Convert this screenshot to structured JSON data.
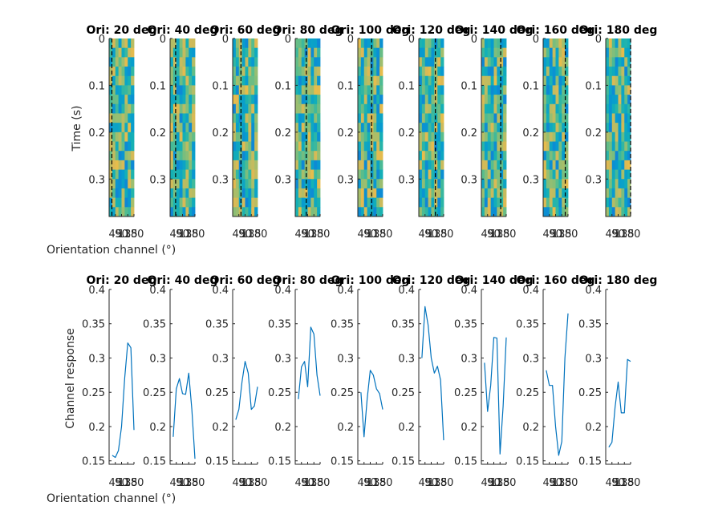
{
  "figure": {
    "top_xlabel": "Orientation channel (°)",
    "bottom_xlabel": "Orientation channel (°)",
    "top_ylabel": "Time (s)",
    "bottom_ylabel": "Channel response"
  },
  "chart_data": [
    {
      "type": "heatmap",
      "panels": [
        {
          "title": "Ori: 20 deg",
          "stimulus_deg": 20
        },
        {
          "title": "Ori: 40 deg",
          "stimulus_deg": 40
        },
        {
          "title": "Ori: 60 deg",
          "stimulus_deg": 60
        },
        {
          "title": "Ori: 80 deg",
          "stimulus_deg": 80
        },
        {
          "title": "Ori: 100 deg",
          "stimulus_deg": 100
        },
        {
          "title": "Ori: 120 deg",
          "stimulus_deg": 120
        },
        {
          "title": "Ori: 140 deg",
          "stimulus_deg": 140
        },
        {
          "title": "Ori: 160 deg",
          "stimulus_deg": 160
        },
        {
          "title": "Ori: 180 deg",
          "stimulus_deg": 180
        }
      ],
      "xlabel": "Orientation channel (°)",
      "ylabel": "Time (s)",
      "xlim": [
        0,
        180
      ],
      "ylim": [
        0,
        0.38
      ],
      "y_reversed": true,
      "x_ticks": [
        45,
        90,
        135,
        180
      ],
      "x_tick_labels": [
        "45",
        "90",
        "135",
        "180"
      ],
      "y_ticks": [
        0,
        0.1,
        0.2,
        0.3
      ],
      "y_tick_labels": [
        "0",
        "0.1",
        "0.2",
        "0.3"
      ],
      "channels": 8,
      "time_bins": 19,
      "colormap": "parula",
      "marker_line": "dashed black vertical line at stimulus orientation"
    },
    {
      "type": "line",
      "xlabel": "Orientation channel (°)",
      "ylabel": "Channel response",
      "xlim": [
        0,
        180
      ],
      "ylim": [
        0.145,
        0.4
      ],
      "x_ticks": [
        45,
        90,
        135,
        180
      ],
      "x_tick_labels": [
        "45",
        "90",
        "135",
        "180"
      ],
      "y_ticks": [
        0.15,
        0.2,
        0.25,
        0.3,
        0.35,
        0.4
      ],
      "y_tick_labels": [
        "0.15",
        "0.2",
        "0.25",
        "0.3",
        "0.35",
        "0.4"
      ],
      "x": [
        22.5,
        45,
        67.5,
        90,
        112.5,
        135,
        157.5,
        180
      ],
      "color": "#0072BD",
      "series": [
        {
          "title": "Ori: 20 deg",
          "values": [
            0.158,
            0.155,
            0.165,
            0.2,
            0.27,
            0.322,
            0.315,
            0.195
          ]
        },
        {
          "title": "Ori: 40 deg",
          "values": [
            0.185,
            0.255,
            0.27,
            0.248,
            0.247,
            0.278,
            0.225,
            0.153
          ]
        },
        {
          "title": "Ori: 60 deg",
          "values": [
            0.21,
            0.225,
            0.265,
            0.295,
            0.278,
            0.225,
            0.23,
            0.258
          ]
        },
        {
          "title": "Ori: 80 deg",
          "values": [
            0.24,
            0.287,
            0.295,
            0.258,
            0.345,
            0.335,
            0.275,
            0.245
          ]
        },
        {
          "title": "Ori: 100 deg",
          "values": [
            0.25,
            0.185,
            0.24,
            0.282,
            0.275,
            0.255,
            0.248,
            0.225
          ]
        },
        {
          "title": "Ori: 120 deg",
          "values": [
            0.3,
            0.375,
            0.348,
            0.3,
            0.278,
            0.288,
            0.268,
            0.18
          ]
        },
        {
          "title": "Ori: 140 deg",
          "values": [
            0.293,
            0.222,
            0.26,
            0.33,
            0.329,
            0.16,
            0.23,
            0.33
          ]
        },
        {
          "title": "Ori: 160 deg",
          "values": [
            0.282,
            0.26,
            0.26,
            0.2,
            0.158,
            0.178,
            0.3,
            0.365
          ]
        },
        {
          "title": "Ori: 180 deg",
          "values": [
            0.17,
            0.177,
            0.228,
            0.265,
            0.22,
            0.22,
            0.298,
            0.295
          ]
        }
      ]
    }
  ]
}
